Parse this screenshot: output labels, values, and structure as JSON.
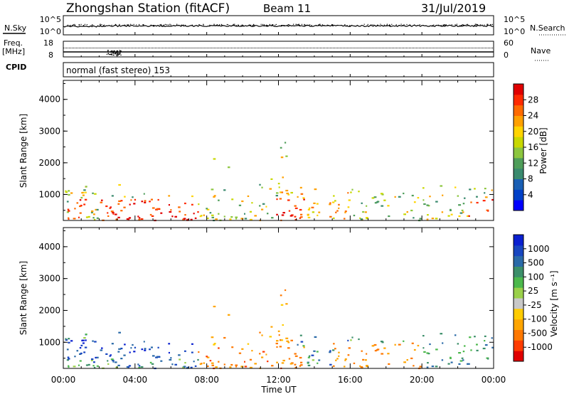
{
  "header": {
    "station": "Zhongshan Station (fitACF)",
    "beam": "Beam 11",
    "date": "31/Jul/2019"
  },
  "top_panels": {
    "nsky_label": "N.Sky",
    "nsky_ticks": [
      "10^5",
      "10^0"
    ],
    "nsearch_label": "N.Search",
    "nsearch_ticks": [
      "10^5",
      "10^0"
    ],
    "freq_label": [
      "Freq.",
      "[MHz]"
    ],
    "freq_ticks": [
      "18",
      "8"
    ],
    "nave_label": "Nave",
    "nave_ticks": [
      "60",
      "0"
    ],
    "cpid_label": "CPID",
    "mode_text": "normal (fast stereo) 153"
  },
  "chart_data": [
    {
      "type": "heatmap",
      "title": "",
      "ylabel": "Slant Range [km]",
      "xlabel": "",
      "x_ticks": [
        "00:00",
        "04:00",
        "08:00",
        "12:00",
        "16:00",
        "20:00",
        "00:00"
      ],
      "xlim_hours": [
        0,
        24
      ],
      "y_ticks": [
        4000,
        3000,
        2000,
        1000
      ],
      "ylim": [
        180,
        4600
      ],
      "colorbar": {
        "label": "Power [dB]",
        "ticks": [
          "28",
          "24",
          "20",
          "16",
          "12",
          "8",
          "4"
        ],
        "range": [
          0,
          30
        ],
        "colors": [
          "#0000ff",
          "#0040c8",
          "#1a5fb4",
          "#3a8a6e",
          "#4f9e5a",
          "#8cc63e",
          "#c8d800",
          "#ffd400",
          "#ffa000",
          "#ff6a00",
          "#ff2a00",
          "#e00000"
        ]
      }
    },
    {
      "type": "heatmap",
      "title": "",
      "ylabel": "Slant Range [km]",
      "xlabel": "Time UT",
      "x_ticks": [
        "00:00",
        "04:00",
        "08:00",
        "12:00",
        "16:00",
        "20:00",
        "00:00"
      ],
      "xlim_hours": [
        0,
        24
      ],
      "y_ticks": [
        4000,
        3000,
        2000,
        1000
      ],
      "ylim": [
        180,
        4600
      ],
      "colorbar": {
        "label": "Velocity [m s⁻¹]",
        "ticks": [
          "1000",
          "500",
          "100",
          "25",
          "-25",
          "-100",
          "-500",
          "-1000"
        ],
        "range": [
          -1250,
          1250
        ],
        "colors": [
          "#e00000",
          "#ff3c00",
          "#ff7800",
          "#ffa500",
          "#ffcc00",
          "#c8c8c8",
          "#9ad04a",
          "#4cb84c",
          "#3c8f6a",
          "#2a6aa8",
          "#1846c0",
          "#0a20d0"
        ]
      }
    }
  ]
}
